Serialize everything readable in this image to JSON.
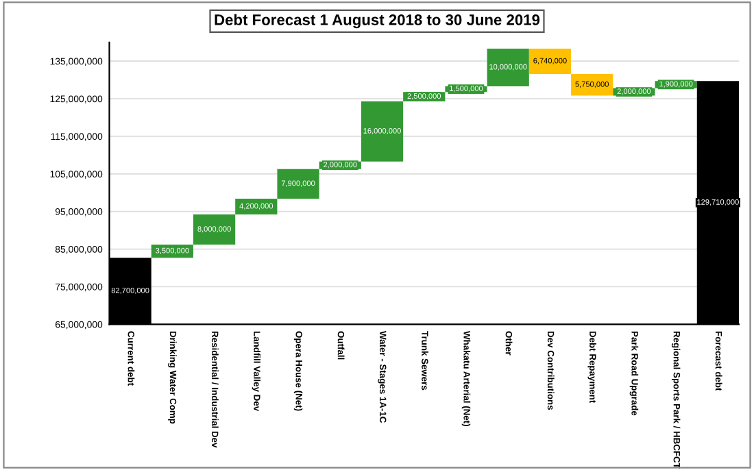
{
  "chart_data": {
    "type": "bar",
    "title": "Debt Forecast 1 August 2018 to 30 June 2019",
    "categories": [
      "Current debt",
      "Drinking Water Comp",
      "Residential / Industrial Dev",
      "Landfill Valley Dev",
      "Opera House (Net)",
      "Outfall",
      "Water - Stages 1A-1C",
      "Trunk Sewers",
      "Whakatu Arterial (Net)",
      "Other",
      "Dev Contributions",
      "Debt Repayment",
      "Park Road Upgrade",
      "Regional Sports Park / HBCFCT",
      "Forecast debt"
    ],
    "values": [
      82700000,
      3500000,
      8000000,
      4200000,
      7900000,
      2000000,
      16000000,
      2500000,
      1500000,
      10000000,
      6740000,
      5750000,
      2000000,
      1900000,
      129710000
    ],
    "base": [
      null,
      82700000,
      86200000,
      94200000,
      98400000,
      106300000,
      108300000,
      124300000,
      126800000,
      128300000,
      131560000,
      125810000,
      125810000,
      127810000,
      null
    ],
    "colors": [
      "#000000",
      "#339933",
      "#339933",
      "#339933",
      "#339933",
      "#339933",
      "#339933",
      "#339933",
      "#339933",
      "#339933",
      "#ffc000",
      "#ffc000",
      "#339933",
      "#339933",
      "#000000"
    ],
    "value_labels": [
      "82,700,000",
      "3,500,000",
      "8,000,000",
      "4,200,000",
      "7,900,000",
      "2,000,000",
      "16,000,000",
      "2,500,000",
      "1,500,000",
      "10,000,000",
      "6,740,000",
      "5,750,000",
      "2,000,000",
      "1,900,000",
      "129,710,000"
    ],
    "ylim": [
      65000000,
      140000000
    ],
    "yticks": [
      {
        "value": 65000000,
        "label": "65,000,000"
      },
      {
        "value": 75000000,
        "label": "75,000,000"
      },
      {
        "value": 85000000,
        "label": "85,000,000"
      },
      {
        "value": 95000000,
        "label": "95,000,000"
      },
      {
        "value": 105000000,
        "label": "105,000,000"
      },
      {
        "value": 115000000,
        "label": "115,000,000"
      },
      {
        "value": 125000000,
        "label": "125,000,000"
      },
      {
        "value": 135000000,
        "label": "135,000,000"
      }
    ],
    "grid": "y"
  }
}
